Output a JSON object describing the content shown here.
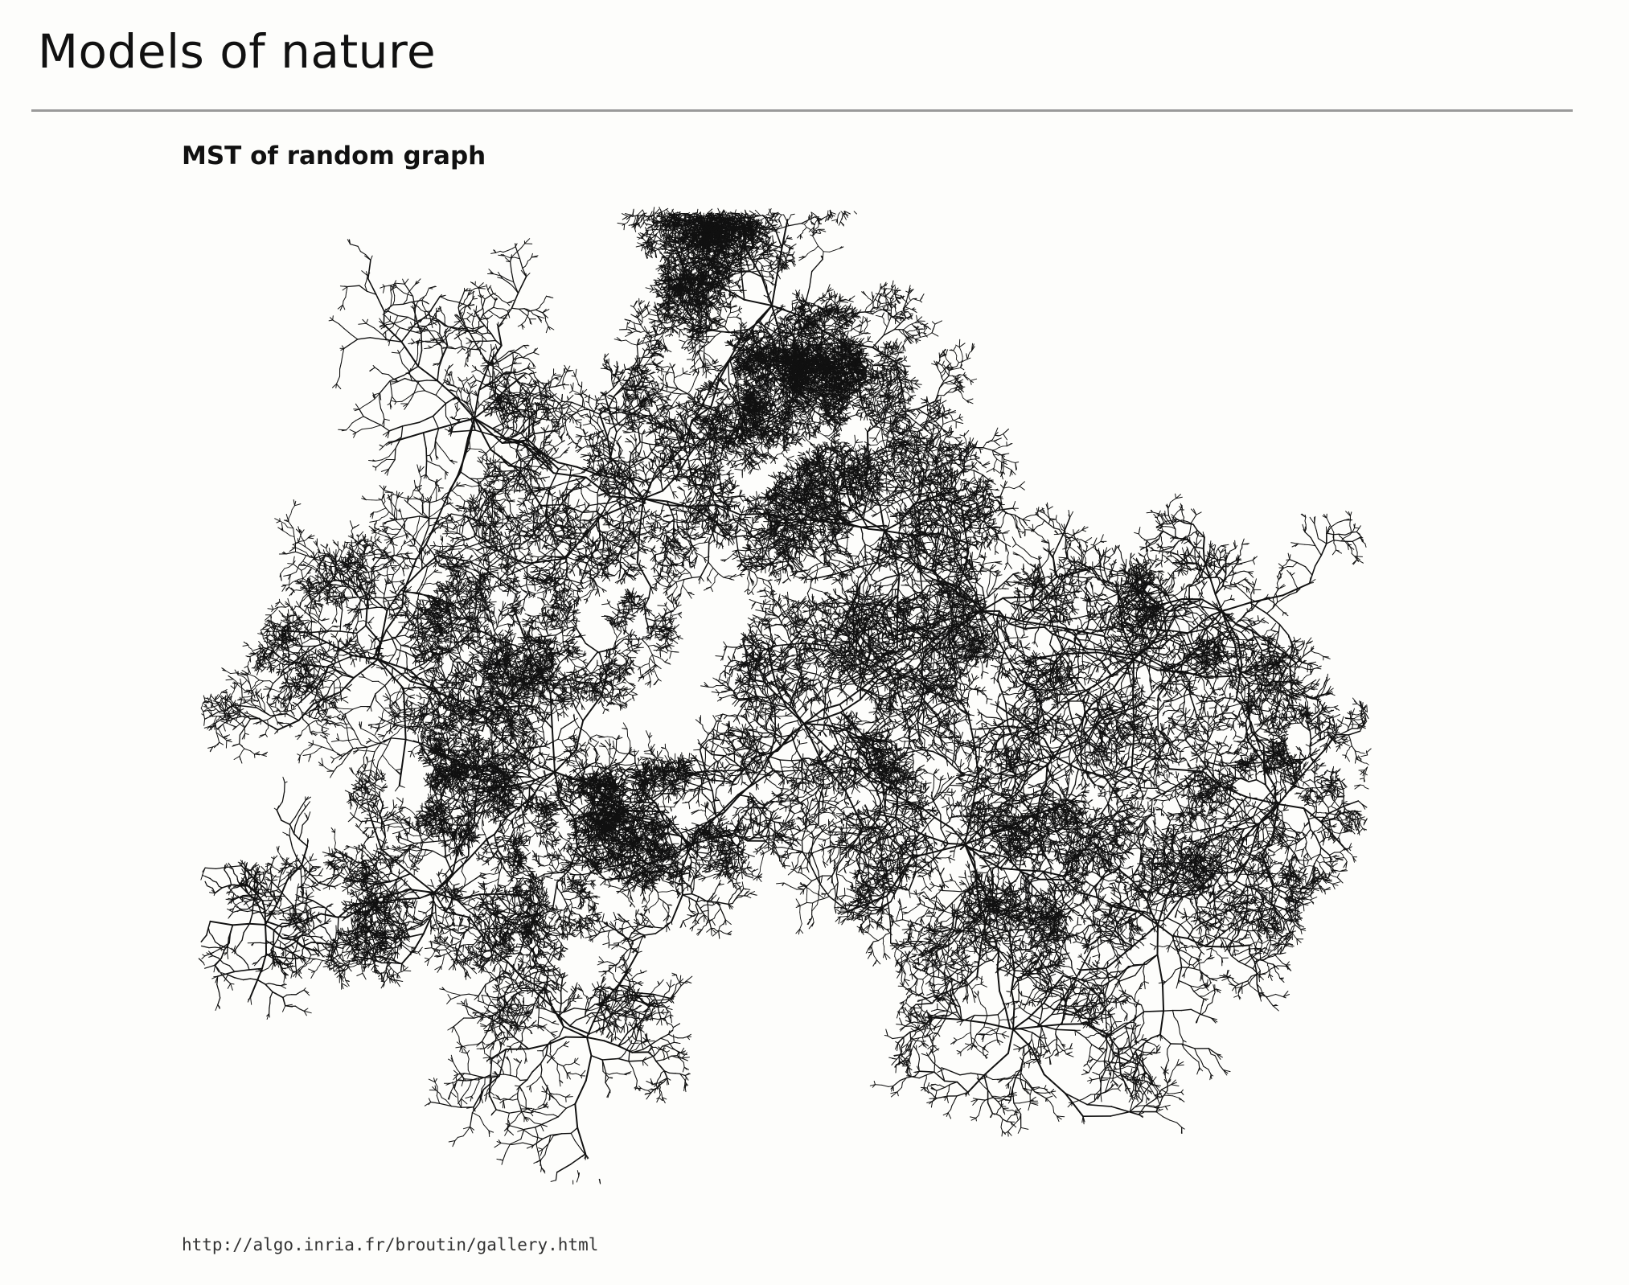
{
  "slide": {
    "title": "Models of nature",
    "subtitle": "MST of random graph",
    "source_url": "http://algo.inria.fr/broutin/gallery.html"
  },
  "figure": {
    "subject": "minimum-spanning-tree",
    "stroke_color": "#111111",
    "background_color": "#fdfdfb"
  }
}
